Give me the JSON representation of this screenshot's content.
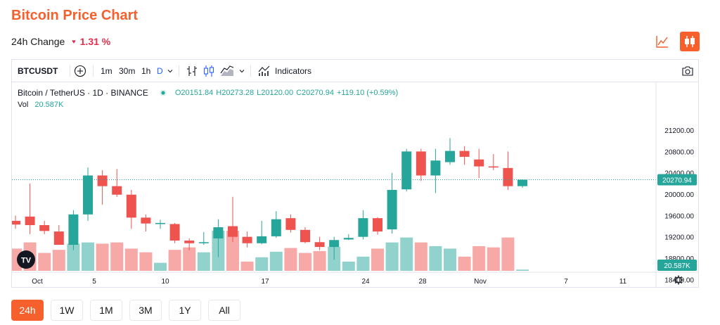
{
  "header": {
    "title": "Bitcoin Price Chart",
    "change_label": "24h Change",
    "change_value": "1.31 %"
  },
  "view_toggle": {
    "line_icon": "line-chart-icon",
    "candle_icon": "candlestick-icon",
    "active": "candle"
  },
  "toolbar": {
    "symbol": "BTCUSDT",
    "intervals": [
      "1m",
      "30m",
      "1h",
      "D"
    ],
    "active_interval": "D",
    "indicators_label": "Indicators"
  },
  "legend": {
    "title": "Bitcoin / TetherUS · 1D · BINANCE",
    "open": "O20151.84",
    "high": "H20273.28",
    "low": "L20120.00",
    "close": "C20270.94",
    "change": "+119.10 (+0.59%)",
    "vol_label": "Vol",
    "vol_value": "20.587K"
  },
  "colors": {
    "up": "#26a69a",
    "down": "#ef5350",
    "vol_up": "#92d2cc",
    "vol_down": "#f7a9a7",
    "accent": "#f6602d"
  },
  "chart_data": {
    "type": "candlestick",
    "price_axis": {
      "ticks": [
        18400,
        18800,
        19200,
        19600,
        20000,
        20400,
        20800,
        21200
      ],
      "tick_labels": [
        "18400.00",
        "18800.00",
        "19200.00",
        "19600.00",
        "20000.00",
        "20400.00",
        "20800.00",
        "21200.00"
      ],
      "last_price": "20270.94",
      "last_volume": "20.587K"
    },
    "time_axis": {
      "labels": [
        "Oct",
        "5",
        "10",
        "17",
        "24",
        "28",
        "Nov",
        "7",
        "11"
      ]
    },
    "candles": [
      {
        "o": 19500,
        "h": 19600,
        "l": 19350,
        "c": 19430
      },
      {
        "o": 19580,
        "h": 20200,
        "l": 19250,
        "c": 19420
      },
      {
        "o": 19420,
        "h": 19500,
        "l": 19250,
        "c": 19310
      },
      {
        "o": 19300,
        "h": 19420,
        "l": 19050,
        "c": 19050
      },
      {
        "o": 19050,
        "h": 19700,
        "l": 18950,
        "c": 19620
      },
      {
        "o": 19620,
        "h": 20500,
        "l": 19500,
        "c": 20350
      },
      {
        "o": 20350,
        "h": 20450,
        "l": 19800,
        "c": 20150
      },
      {
        "o": 20150,
        "h": 20470,
        "l": 19950,
        "c": 19990
      },
      {
        "o": 19990,
        "h": 20080,
        "l": 19350,
        "c": 19560
      },
      {
        "o": 19560,
        "h": 19620,
        "l": 19300,
        "c": 19450
      },
      {
        "o": 19440,
        "h": 19520,
        "l": 19350,
        "c": 19460
      },
      {
        "o": 19440,
        "h": 19460,
        "l": 19080,
        "c": 19130
      },
      {
        "o": 19130,
        "h": 19170,
        "l": 18950,
        "c": 19080
      },
      {
        "o": 19080,
        "h": 19290,
        "l": 19050,
        "c": 19100
      },
      {
        "o": 19170,
        "h": 19530,
        "l": 18820,
        "c": 19380
      },
      {
        "o": 19400,
        "h": 19950,
        "l": 19100,
        "c": 19200
      },
      {
        "o": 19200,
        "h": 19300,
        "l": 19000,
        "c": 19080
      },
      {
        "o": 19080,
        "h": 19500,
        "l": 19060,
        "c": 19210
      },
      {
        "o": 19210,
        "h": 19680,
        "l": 19180,
        "c": 19530
      },
      {
        "o": 19550,
        "h": 19620,
        "l": 19280,
        "c": 19330
      },
      {
        "o": 19330,
        "h": 19380,
        "l": 19080,
        "c": 19100
      },
      {
        "o": 19100,
        "h": 19200,
        "l": 18950,
        "c": 19010
      },
      {
        "o": 19010,
        "h": 19200,
        "l": 18770,
        "c": 19140
      },
      {
        "o": 19150,
        "h": 19250,
        "l": 19140,
        "c": 19180
      },
      {
        "o": 19200,
        "h": 19700,
        "l": 19150,
        "c": 19550
      },
      {
        "o": 19550,
        "h": 19570,
        "l": 19240,
        "c": 19300
      },
      {
        "o": 19340,
        "h": 20400,
        "l": 19260,
        "c": 20080
      },
      {
        "o": 20090,
        "h": 20850,
        "l": 20050,
        "c": 20800
      },
      {
        "o": 20800,
        "h": 20850,
        "l": 20250,
        "c": 20350
      },
      {
        "o": 20350,
        "h": 20850,
        "l": 20020,
        "c": 20630
      },
      {
        "o": 20600,
        "h": 21050,
        "l": 20550,
        "c": 20810
      },
      {
        "o": 20810,
        "h": 20900,
        "l": 20550,
        "c": 20700
      },
      {
        "o": 20650,
        "h": 20850,
        "l": 20300,
        "c": 20520
      },
      {
        "o": 20520,
        "h": 20750,
        "l": 20450,
        "c": 20500
      },
      {
        "o": 20490,
        "h": 20800,
        "l": 20080,
        "c": 20150
      },
      {
        "o": 20150,
        "h": 20275,
        "l": 20120,
        "c": 20271
      }
    ],
    "volumes": [
      36,
      46,
      29,
      34,
      44,
      46,
      44,
      46,
      36,
      30,
      13,
      34,
      38,
      30,
      65,
      65,
      15,
      22,
      31,
      37,
      29,
      32,
      39,
      15,
      23,
      36,
      46,
      54,
      46,
      40,
      36,
      23,
      40,
      38,
      54,
      2
    ]
  },
  "timeframes": {
    "items": [
      "24h",
      "1W",
      "1M",
      "3M",
      "1Y",
      "All"
    ],
    "active": "24h"
  }
}
